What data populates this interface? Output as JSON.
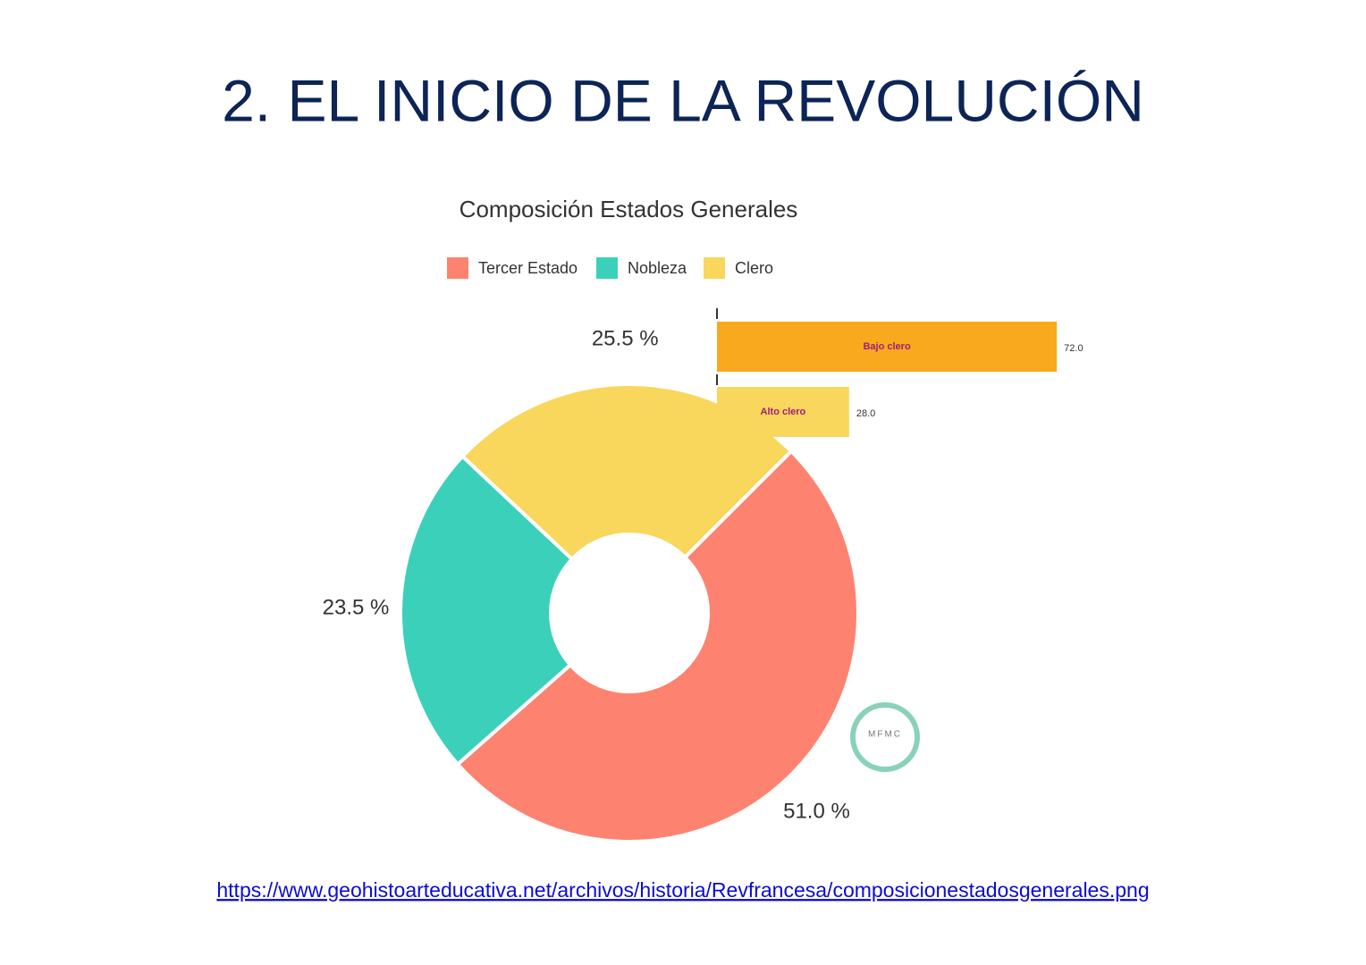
{
  "title": "2. EL INICIO DE LA REVOLUCIÓN",
  "chart_data": [
    {
      "type": "pie",
      "title": "Composición Estados Generales",
      "categories": [
        "Tercer Estado",
        "Nobleza",
        "Clero"
      ],
      "values": [
        51.0,
        23.5,
        25.5
      ],
      "value_labels": [
        "51.0 %",
        "23.5 %",
        "25.5 %"
      ],
      "colors": [
        "#fd8370",
        "#3bd0b9",
        "#f9d65c"
      ],
      "legend": "top"
    },
    {
      "type": "barh",
      "categories": [
        "Bajo clero",
        "Alto clero"
      ],
      "values": [
        72.0,
        28.0
      ],
      "value_labels": [
        "72.0",
        "28.0"
      ],
      "colors": [
        "#f9a91d",
        "#f9d65c"
      ],
      "xlim": [
        0,
        100
      ]
    }
  ],
  "watermark": "MFMC",
  "link": "https://www.geohistoarteducativa.net/archivos/historia/Revfrancesa/composicionestadosgenerales.png"
}
